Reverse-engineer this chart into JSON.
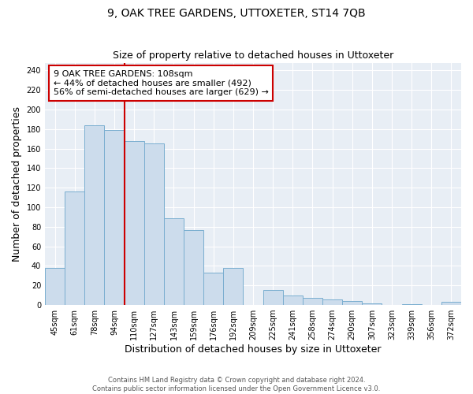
{
  "title_line1": "9, OAK TREE GARDENS, UTTOXETER, ST14 7QB",
  "subtitle": "Size of property relative to detached houses in Uttoxeter",
  "xlabel": "Distribution of detached houses by size in Uttoxeter",
  "ylabel": "Number of detached properties",
  "bin_labels": [
    "45sqm",
    "61sqm",
    "78sqm",
    "94sqm",
    "110sqm",
    "127sqm",
    "143sqm",
    "159sqm",
    "176sqm",
    "192sqm",
    "209sqm",
    "225sqm",
    "241sqm",
    "258sqm",
    "274sqm",
    "290sqm",
    "307sqm",
    "323sqm",
    "339sqm",
    "356sqm",
    "372sqm"
  ],
  "bar_heights": [
    38,
    116,
    184,
    179,
    168,
    165,
    89,
    77,
    33,
    38,
    0,
    15,
    10,
    7,
    6,
    4,
    2,
    0,
    1,
    0,
    3
  ],
  "bar_color": "#ccdcec",
  "bar_edge_color": "#7aaed0",
  "vline_pos": 3.5,
  "vline_color": "#cc0000",
  "annotation_box_text": "9 OAK TREE GARDENS: 108sqm\n← 44% of detached houses are smaller (492)\n56% of semi-detached houses are larger (629) →",
  "annotation_box_color": "#cc0000",
  "ylim": [
    0,
    248
  ],
  "yticks": [
    0,
    20,
    40,
    60,
    80,
    100,
    120,
    140,
    160,
    180,
    200,
    220,
    240
  ],
  "footer_line1": "Contains HM Land Registry data © Crown copyright and database right 2024.",
  "footer_line2": "Contains public sector information licensed under the Open Government Licence v3.0.",
  "bg_color": "#ffffff",
  "plot_bg_color": "#e8eef5",
  "grid_color": "#ffffff",
  "title_fontsize": 10,
  "subtitle_fontsize": 9,
  "axis_label_fontsize": 9,
  "tick_fontsize": 7,
  "footer_fontsize": 6,
  "annot_fontsize": 8
}
